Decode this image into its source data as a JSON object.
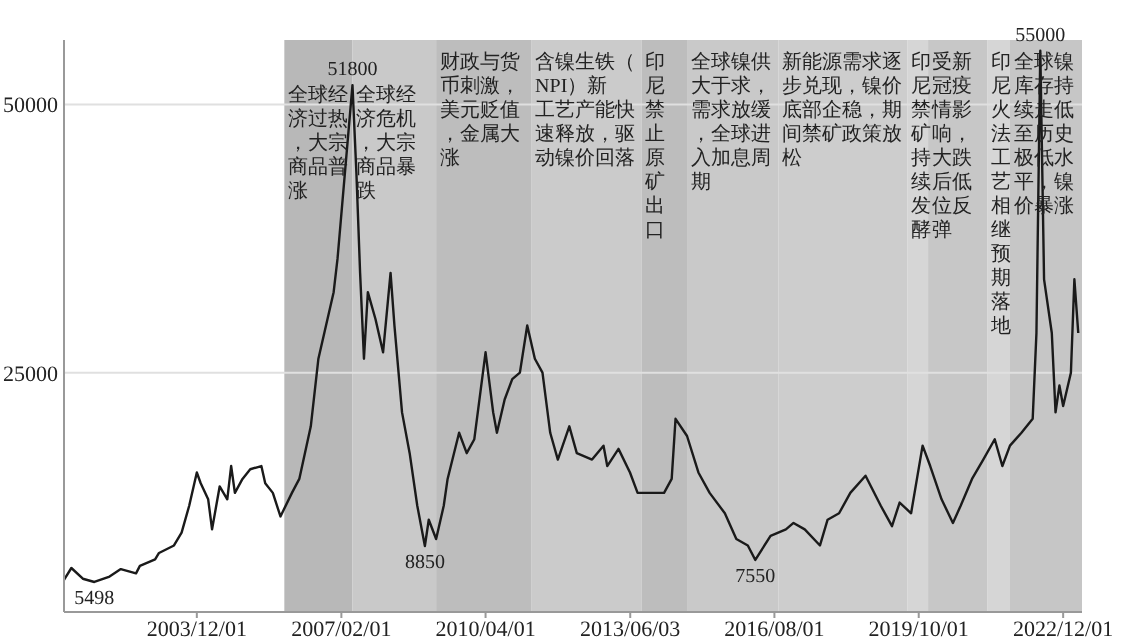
{
  "chart_data": {
    "type": "line",
    "xlim": [
      "2001-01-01",
      "2023-05-01"
    ],
    "ylim": [
      2700,
      56000
    ],
    "yticks": [
      25000,
      50000
    ],
    "grid": "y",
    "xticks": [
      {
        "value": "2003-12-01",
        "label": "2003/12/01"
      },
      {
        "value": "2007-02-01",
        "label": "2007/02/01"
      },
      {
        "value": "2010-04-01",
        "label": "2010/04/01"
      },
      {
        "value": "2013-06-03",
        "label": "2013/06/03"
      },
      {
        "value": "2016-08-01",
        "label": "2016/08/01"
      },
      {
        "value": "2019-10-01",
        "label": "2019/10/01"
      },
      {
        "value": "2022-12-01",
        "label": "2022/12/01"
      }
    ],
    "series": [
      {
        "color": "#1a1a1a",
        "x": [
          "2001-01",
          "2001-03",
          "2001-06",
          "2001-09",
          "2002-01",
          "2002-04",
          "2002-08",
          "2002-09",
          "2003-01",
          "2003-02",
          "2003-06",
          "2003-08",
          "2003-10",
          "2003-12",
          "2004-01",
          "2004-03",
          "2004-04",
          "2004-06",
          "2004-08",
          "2004-09",
          "2004-10",
          "2004-12",
          "2005-02",
          "2005-05",
          "2005-06",
          "2005-08",
          "2005-10",
          "2006-01",
          "2006-03",
          "2006-06",
          "2006-08",
          "2006-10",
          "2006-12",
          "2007-01",
          "2007-05",
          "2007-06",
          "2007-07",
          "2007-08",
          "2007-09",
          "2007-11",
          "2008-01",
          "2008-03",
          "2008-04",
          "2008-06",
          "2008-08",
          "2008-10",
          "2008-12",
          "2009-01",
          "2009-03",
          "2009-05",
          "2009-06",
          "2009-09",
          "2009-11",
          "2010-01",
          "2010-04",
          "2010-06",
          "2010-07",
          "2010-09",
          "2010-11",
          "2011-01",
          "2011-03",
          "2011-05",
          "2011-07",
          "2011-09",
          "2011-11",
          "2012-02",
          "2012-04",
          "2012-08",
          "2012-11",
          "2012-12",
          "2013-03",
          "2013-06",
          "2013-08",
          "2013-12",
          "2014-03",
          "2014-05",
          "2014-06",
          "2014-09",
          "2014-12",
          "2015-03",
          "2015-07",
          "2015-10",
          "2016-01",
          "2016-03",
          "2016-07",
          "2016-11",
          "2017-01",
          "2017-04",
          "2017-08",
          "2017-10",
          "2018-01",
          "2018-04",
          "2018-08",
          "2018-12",
          "2019-03",
          "2019-05",
          "2019-08",
          "2019-11",
          "2020-01",
          "2020-04",
          "2020-07",
          "2020-09",
          "2020-12",
          "2021-03",
          "2021-06",
          "2021-08",
          "2021-10",
          "2022-01",
          "2022-04",
          "2022-05",
          "2022-06",
          "2022-07",
          "2022-09",
          "2022-10",
          "2022-11",
          "2022-12",
          "2023-02",
          "2023-03",
          "2023-04"
        ],
        "values": [
          5700,
          6800,
          5800,
          5498,
          6000,
          6700,
          6300,
          7000,
          7600,
          8200,
          8900,
          10100,
          12600,
          15700,
          14700,
          13200,
          10400,
          14400,
          13200,
          16300,
          13800,
          15100,
          16000,
          16300,
          14700,
          13800,
          11600,
          13800,
          15100,
          20000,
          26300,
          29400,
          32500,
          35600,
          51800,
          43700,
          34300,
          26300,
          32500,
          30000,
          26900,
          34300,
          29400,
          21300,
          17500,
          12600,
          8850,
          11300,
          9500,
          12600,
          15100,
          19400,
          17500,
          18800,
          26900,
          21300,
          19400,
          22500,
          24400,
          25000,
          29400,
          26300,
          25000,
          19400,
          16900,
          20000,
          17500,
          16900,
          18200,
          16300,
          17900,
          15700,
          13800,
          13800,
          13800,
          15100,
          20700,
          19100,
          15700,
          13800,
          11900,
          9500,
          8900,
          7550,
          9800,
          10400,
          11000,
          10400,
          8900,
          11300,
          11900,
          13800,
          15400,
          12600,
          10700,
          12900,
          11900,
          18200,
          16300,
          13200,
          11000,
          12600,
          15100,
          16900,
          18800,
          16300,
          18200,
          19400,
          20700,
          28700,
          55000,
          33700,
          28700,
          21300,
          23800,
          21900,
          25000,
          33700,
          28700
        ]
      }
    ],
    "bands": [
      {
        "axis": "x",
        "from": "2005-11-01",
        "to": "2007-05-01",
        "color": "#b8b8b8",
        "label": "全球经济过热，大宗商品普涨"
      },
      {
        "axis": "x",
        "from": "2007-05-01",
        "to": "2009-03-01",
        "color": "#c9c9c9",
        "label": "全球经济危机，大宗商品暴跌"
      },
      {
        "axis": "x",
        "from": "2009-03-01",
        "to": "2011-04-01",
        "color": "#bdbdbd",
        "label": "财政与货币刺激，美元贬值，金属大涨"
      },
      {
        "axis": "x",
        "from": "2011-04-01",
        "to": "2013-09-01",
        "color": "#cbcbcb",
        "label": "含镍生铁（NPI）新工艺产能快速释放，驱动镍价回落"
      },
      {
        "axis": "x",
        "from": "2013-09-01",
        "to": "2014-09-01",
        "color": "#bdbdbd",
        "label": "印尼禁止原矿出口"
      },
      {
        "axis": "x",
        "from": "2014-09-01",
        "to": "2016-09-01",
        "color": "#c9c9c9",
        "label": "全球镍供大于求，需求放缓，全球进入加息周期"
      },
      {
        "axis": "x",
        "from": "2016-09-01",
        "to": "2019-07-01",
        "color": "#cdcdcd",
        "label": "新能源需求逐步兑现，镍价底部企稳，期间禁矿政策放松"
      },
      {
        "axis": "x",
        "from": "2019-07-01",
        "to": "2019-12-15",
        "color": "#d6d6d6",
        "label": "印尼禁矿持续发酵"
      },
      {
        "axis": "x",
        "from": "2019-12-15",
        "to": "2021-04-01",
        "color": "#c7c7c7",
        "label": "受新冠疫情影响，大跌后低位反弹"
      },
      {
        "axis": "x",
        "from": "2021-04-01",
        "to": "2021-10-01",
        "color": "#d6d6d6",
        "label": "印尼火法工艺相继预期落地"
      },
      {
        "axis": "x",
        "from": "2021-10-01",
        "to": "2023-05-01",
        "color": "#c6c6c6",
        "label": "全球镍库存持续走低至历史极低水平，镍价暴涨"
      }
    ],
    "annotations": [
      {
        "text": "5498",
        "x": "2001-09",
        "y": 5498
      },
      {
        "text": "51800",
        "x": "2007-05",
        "y": 51800
      },
      {
        "text": "8850",
        "x": "2008-12",
        "y": 8850
      },
      {
        "text": "7550",
        "x": "2016-03",
        "y": 7550
      },
      {
        "text": "55000",
        "x": "2022-06",
        "y": 55000
      }
    ]
  }
}
